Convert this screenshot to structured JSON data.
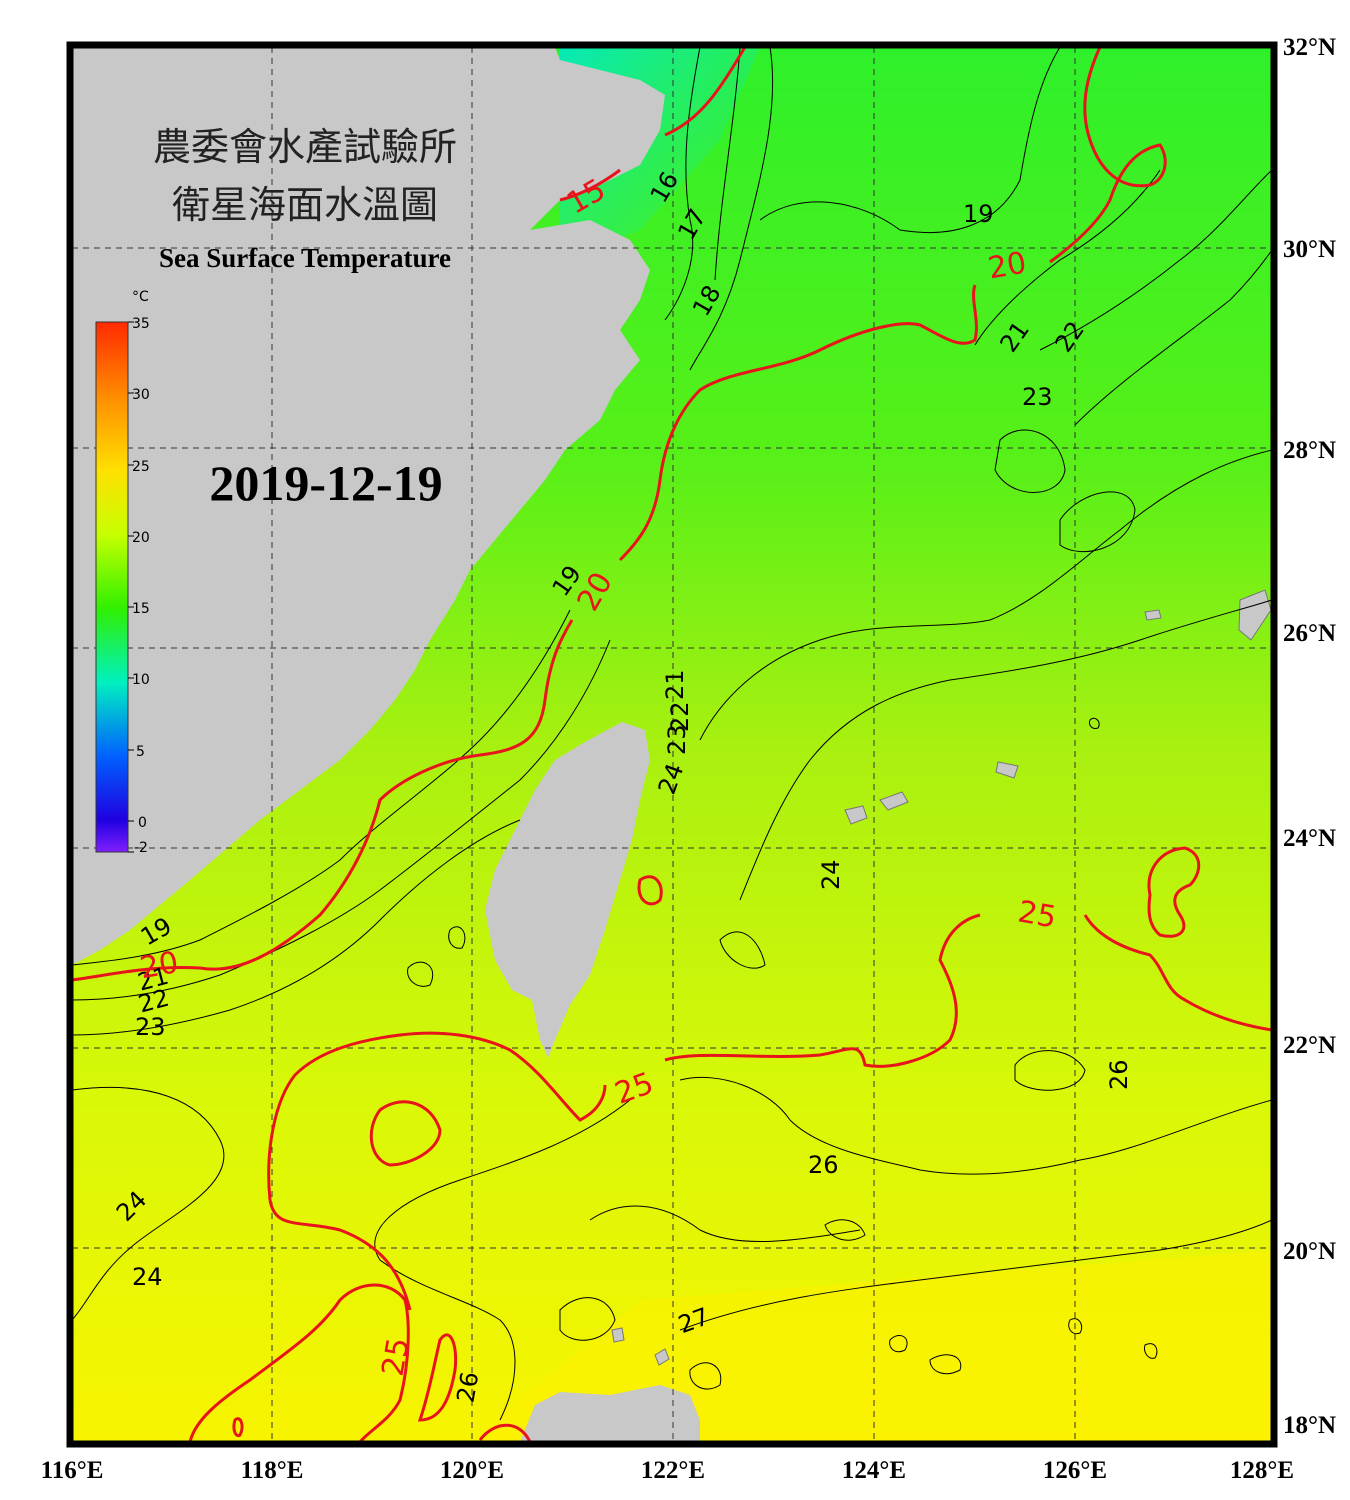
{
  "title": {
    "line1": "農委會水產試驗所",
    "line2": "衛星海面水溫圖",
    "line3": "Sea Surface Temperature"
  },
  "date": "2019-12-19",
  "colorbar": {
    "unit": "°C",
    "ticks": [
      "35",
      "30",
      "25",
      "20",
      "15",
      "10",
      "5",
      "0",
      "-2"
    ],
    "colors": [
      "#ff2a00",
      "#ff8c00",
      "#ffe000",
      "#c8ff00",
      "#30f000",
      "#00f0c0",
      "#0060ff",
      "#2000e0",
      "#8020ff"
    ]
  },
  "axes": {
    "x_labels": [
      "116°E",
      "118°E",
      "120°E",
      "122°E",
      "124°E",
      "126°E",
      "128°E"
    ],
    "y_labels": [
      "32°N",
      "30°N",
      "28°N",
      "26°N",
      "24°N",
      "22°N",
      "20°N",
      "18°N"
    ]
  },
  "contour_labels_black": [
    "16",
    "17",
    "18",
    "19",
    "19",
    "21",
    "22",
    "23",
    "21",
    "22",
    "23",
    "24",
    "24",
    "26",
    "26",
    "19",
    "21",
    "22",
    "23",
    "24",
    "24",
    "26",
    "27"
  ],
  "contour_labels_red": [
    "15",
    "20",
    "20",
    "20",
    "25",
    "25",
    "25"
  ],
  "colors": {
    "land": "#c8c8c8",
    "contour_major": "#e8141c",
    "contour_minor": "#000000"
  }
}
